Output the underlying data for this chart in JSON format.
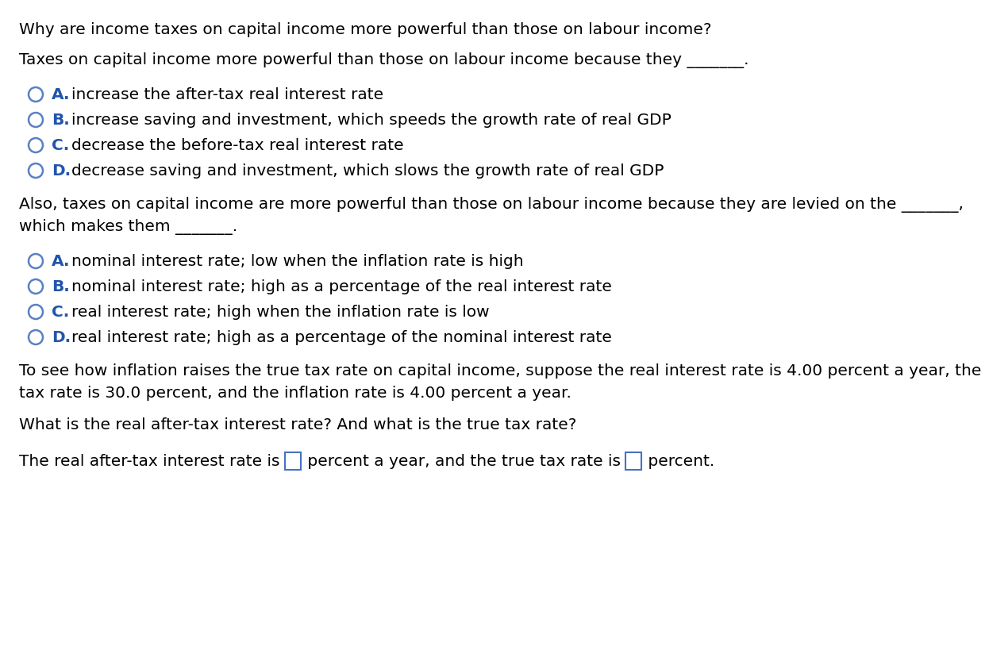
{
  "bg_color": "#ffffff",
  "text_color": "#000000",
  "circle_color": "#5b7fc4",
  "bold_color": "#2255aa",
  "title": "Why are income taxes on capital income more powerful than those on labour income?",
  "q1_intro": "Taxes on capital income more powerful than those on labour income because they _______.",
  "q1_options": [
    [
      "A.",
      "increase the after-tax real interest rate"
    ],
    [
      "B.",
      "increase saving and investment, which speeds the growth rate of real GDP"
    ],
    [
      "C.",
      "decrease the before-tax real interest rate"
    ],
    [
      "D.",
      "decrease saving and investment, which slows the growth rate of real GDP"
    ]
  ],
  "q2_intro_line1": "Also, taxes on capital income are more powerful than those on labour income because they are levied on the _______,",
  "q2_intro_line2": "which makes them _______.",
  "q2_options": [
    [
      "A.",
      "nominal interest rate; low when the inflation rate is high"
    ],
    [
      "B.",
      "nominal interest rate; high as a percentage of the real interest rate"
    ],
    [
      "C.",
      "real interest rate; high when the inflation rate is low"
    ],
    [
      "D.",
      "real interest rate; high as a percentage of the nominal interest rate"
    ]
  ],
  "q3_line1": "To see how inflation raises the true tax rate on capital income, suppose the real interest rate is 4.00 percent a year, the",
  "q3_line2": "tax rate is 30.0 percent, and the inflation rate is 4.00 percent a year.",
  "q4_text": "What is the real after-tax interest rate? And what is the true tax rate?",
  "q5_part1": "The real after-tax interest rate is ",
  "q5_part2": " percent a year, and the true tax rate is ",
  "q5_part3": " percent.",
  "font_size": 14.5,
  "box_color": "#4472c4"
}
